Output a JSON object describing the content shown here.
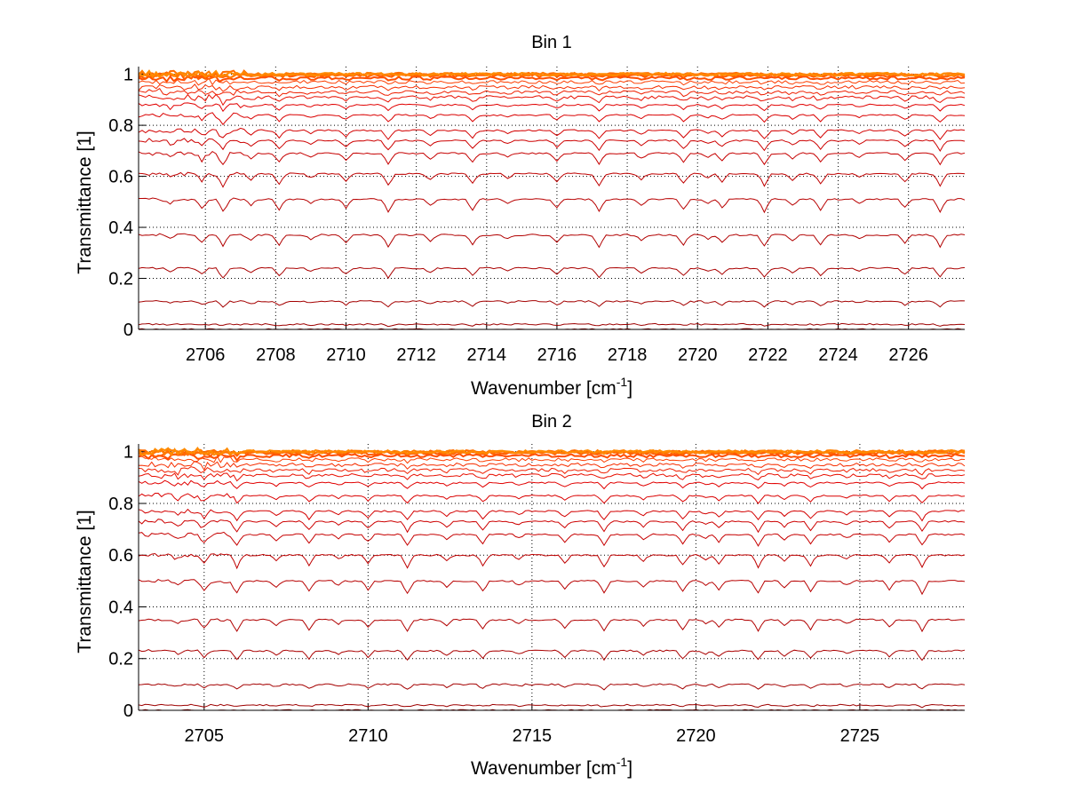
{
  "chart_data": [
    {
      "type": "line",
      "title": "Bin 1",
      "xlabel": "Wavenumber [cm",
      "xlabel_sup": "-1",
      "xlabel_end": "]",
      "ylabel": "Transmittance [1]",
      "xlim": [
        2704.1,
        2727.6
      ],
      "ylim": [
        0,
        1.03
      ],
      "grid": true,
      "xticks": [
        2706,
        2708,
        2710,
        2712,
        2714,
        2716,
        2718,
        2720,
        2722,
        2724,
        2726
      ],
      "yticks": [
        0,
        0.2,
        0.4,
        0.6,
        0.8,
        1
      ],
      "ytick_labels": [
        "0",
        "0.2",
        "0.4",
        "0.6",
        "0.8",
        "1"
      ],
      "series_levels": [
        0.0,
        0.02,
        0.11,
        0.24,
        0.37,
        0.51,
        0.61,
        0.69,
        0.74,
        0.78,
        0.84,
        0.88,
        0.91,
        0.93,
        0.95,
        0.97,
        0.985,
        0.995,
        1.0,
        1.0,
        1.0
      ],
      "absorption_lines": [
        2705.0,
        2705.9,
        2706.5,
        2707.3,
        2708.1,
        2709.0,
        2710.0,
        2711.2,
        2712.4,
        2713.6,
        2714.6,
        2716.0,
        2717.2,
        2718.4,
        2719.6,
        2720.3,
        2720.7,
        2721.9,
        2722.7,
        2723.5,
        2724.6,
        2725.9,
        2726.9
      ]
    },
    {
      "type": "line",
      "title": "Bin 2",
      "xlabel": "Wavenumber [cm",
      "xlabel_sup": "-1",
      "xlabel_end": "]",
      "ylabel": "Transmittance [1]",
      "xlim": [
        2703.0,
        2728.2
      ],
      "ylim": [
        0,
        1.03
      ],
      "grid": true,
      "xticks": [
        2705,
        2710,
        2715,
        2720,
        2725
      ],
      "yticks": [
        0,
        0.2,
        0.4,
        0.6,
        0.8,
        1
      ],
      "ytick_labels": [
        "0",
        "0.2",
        "0.4",
        "0.6",
        "0.8",
        "1"
      ],
      "series_levels": [
        0.0,
        0.02,
        0.1,
        0.23,
        0.35,
        0.5,
        0.6,
        0.68,
        0.73,
        0.77,
        0.83,
        0.88,
        0.91,
        0.93,
        0.95,
        0.97,
        0.985,
        0.995,
        1.0,
        1.0,
        1.0
      ],
      "absorption_lines": [
        2704.2,
        2705.0,
        2706.0,
        2707.2,
        2708.2,
        2709.1,
        2710.0,
        2711.2,
        2712.4,
        2713.5,
        2714.6,
        2716.0,
        2717.2,
        2718.4,
        2719.6,
        2720.3,
        2720.7,
        2721.9,
        2722.7,
        2723.5,
        2724.6,
        2725.9,
        2726.9
      ]
    }
  ]
}
